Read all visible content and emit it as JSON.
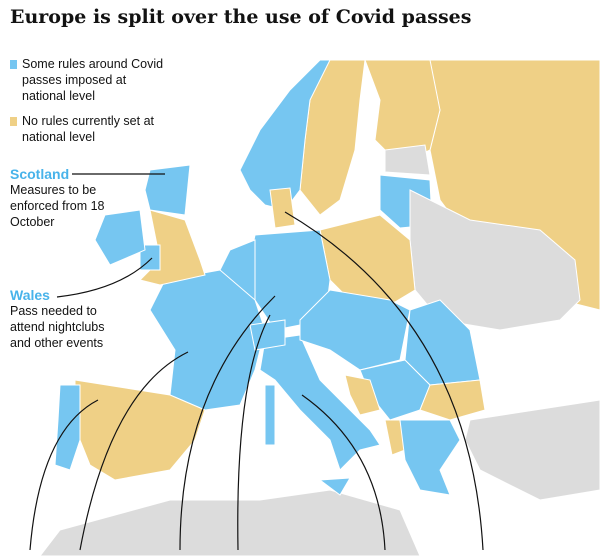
{
  "title": "Europe is split over the use of Covid passes",
  "legend": [
    {
      "label": "Some rules around Covid passes imposed at national level",
      "color": "#76c6f1"
    },
    {
      "label": "No rules currently set at national level",
      "color": "#efd086"
    }
  ],
  "annotations": [
    {
      "title": "Scotland",
      "text": "Measures to be enforced from 18 October"
    },
    {
      "title": "Wales",
      "text": "Pass needed to attend nightclubs and other events"
    }
  ]
}
